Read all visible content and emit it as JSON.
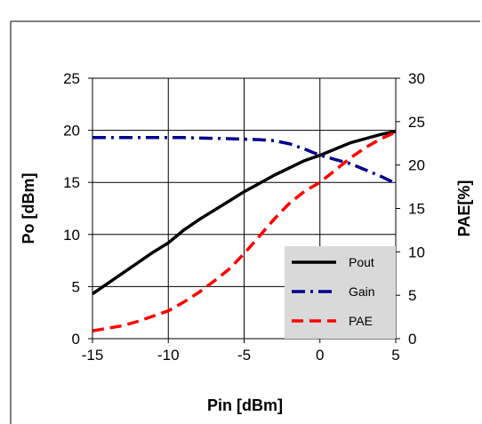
{
  "chart_data": {
    "type": "line",
    "xlabel": "Pin [dBm]",
    "ylabel": "Po [dBm]",
    "y2label": "PAE[%]",
    "xlim": [
      -15,
      5
    ],
    "ylim": [
      0,
      25
    ],
    "y2lim": [
      0,
      30
    ],
    "x_ticks": [
      "-15",
      "-10",
      "-5",
      "0",
      "5"
    ],
    "y_ticks": [
      "0",
      "5",
      "10",
      "15",
      "20",
      "25"
    ],
    "y2_ticks": [
      "0",
      "5",
      "10",
      "15",
      "20",
      "25",
      "30"
    ],
    "grid": "vertical and horizontal major",
    "legend_position": "bottom-right",
    "series": [
      {
        "name": "Pout",
        "axis": "left",
        "color": "#000000",
        "dash": "solid",
        "x": [
          -15,
          -14,
          -13,
          -12,
          -11,
          -10,
          -9,
          -8,
          -7,
          -6,
          -5,
          -4,
          -3,
          -2,
          -1,
          0,
          1,
          2,
          3,
          4,
          5
        ],
        "y": [
          4.3,
          5.3,
          6.3,
          7.3,
          8.3,
          9.2,
          10.4,
          11.4,
          12.3,
          13.2,
          14.1,
          14.9,
          15.7,
          16.4,
          17.1,
          17.6,
          18.2,
          18.8,
          19.2,
          19.6,
          19.9
        ]
      },
      {
        "name": "Gain",
        "axis": "left",
        "color": "#00008B",
        "dash": "dash-dot",
        "x": [
          -15,
          -12,
          -9,
          -6,
          -4,
          -3,
          -2,
          -1,
          0,
          1,
          2,
          3,
          4,
          5
        ],
        "y": [
          19.3,
          19.3,
          19.3,
          19.2,
          19.1,
          19.0,
          18.7,
          18.2,
          17.6,
          17.2,
          16.8,
          16.2,
          15.6,
          14.9
        ]
      },
      {
        "name": "PAE",
        "axis": "right",
        "color": "#FF0000",
        "dash": "dashed",
        "x": [
          -15,
          -14,
          -13,
          -12,
          -11,
          -10,
          -9,
          -8,
          -7,
          -6,
          -5,
          -4,
          -3,
          -2,
          -1,
          0,
          1,
          2,
          3,
          4,
          5
        ],
        "y": [
          0.9,
          1.2,
          1.5,
          2.0,
          2.6,
          3.2,
          4.2,
          5.3,
          6.6,
          8.0,
          9.8,
          11.8,
          13.8,
          15.6,
          17.0,
          18.0,
          19.4,
          20.8,
          22.0,
          23.0,
          23.8
        ]
      }
    ]
  }
}
